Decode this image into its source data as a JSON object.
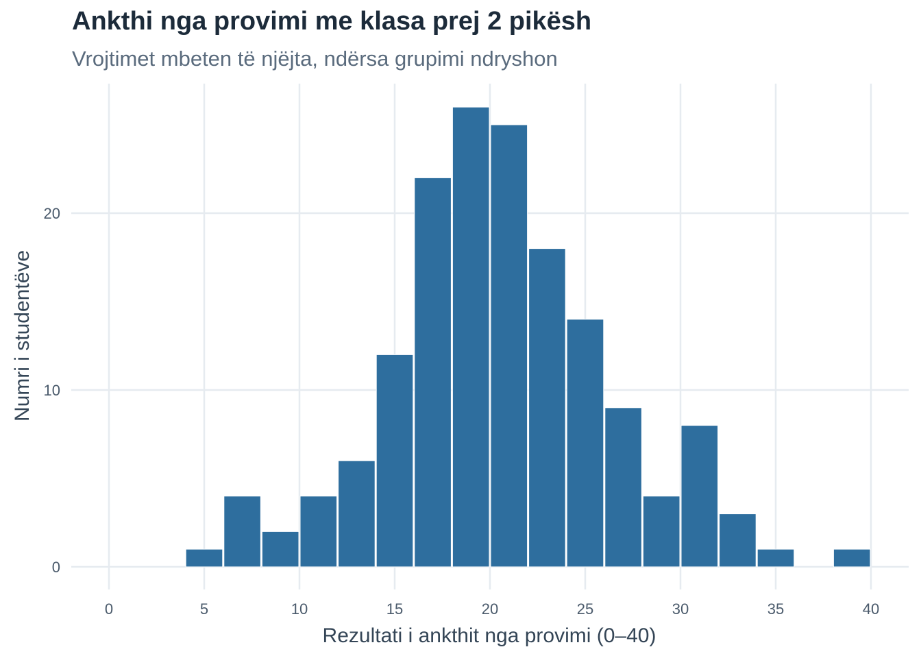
{
  "chart_data": {
    "type": "bar",
    "title": "Ankthi nga provimi me klasa prej 2 pikësh",
    "subtitle": "Vrojtimet mbeten të njëjta, ndërsa grupimi ndryshon",
    "xlabel": "Rezultati i ankthit nga provimi (0–40)",
    "ylabel": "Numri i studentëve",
    "xlim": [
      0,
      40
    ],
    "ylim": [
      0,
      26
    ],
    "xticks": [
      "0",
      "5",
      "10",
      "15",
      "20",
      "25",
      "30",
      "35",
      "40"
    ],
    "yticks": [
      "0",
      "10",
      "20"
    ],
    "bin_width": 2,
    "bins": [
      {
        "x0": 4,
        "x1": 6,
        "count": 1
      },
      {
        "x0": 6,
        "x1": 8,
        "count": 4
      },
      {
        "x0": 8,
        "x1": 10,
        "count": 2
      },
      {
        "x0": 10,
        "x1": 12,
        "count": 4
      },
      {
        "x0": 12,
        "x1": 14,
        "count": 6
      },
      {
        "x0": 14,
        "x1": 16,
        "count": 12
      },
      {
        "x0": 16,
        "x1": 18,
        "count": 22
      },
      {
        "x0": 18,
        "x1": 20,
        "count": 26
      },
      {
        "x0": 20,
        "x1": 22,
        "count": 25
      },
      {
        "x0": 22,
        "x1": 24,
        "count": 18
      },
      {
        "x0": 24,
        "x1": 26,
        "count": 14
      },
      {
        "x0": 26,
        "x1": 28,
        "count": 9
      },
      {
        "x0": 28,
        "x1": 30,
        "count": 4
      },
      {
        "x0": 30,
        "x1": 32,
        "count": 8
      },
      {
        "x0": 32,
        "x1": 34,
        "count": 3
      },
      {
        "x0": 34,
        "x1": 36,
        "count": 1
      },
      {
        "x0": 38,
        "x1": 40,
        "count": 1
      }
    ],
    "bar_color": "#2e6e9e",
    "grid": true,
    "legend": "none"
  }
}
